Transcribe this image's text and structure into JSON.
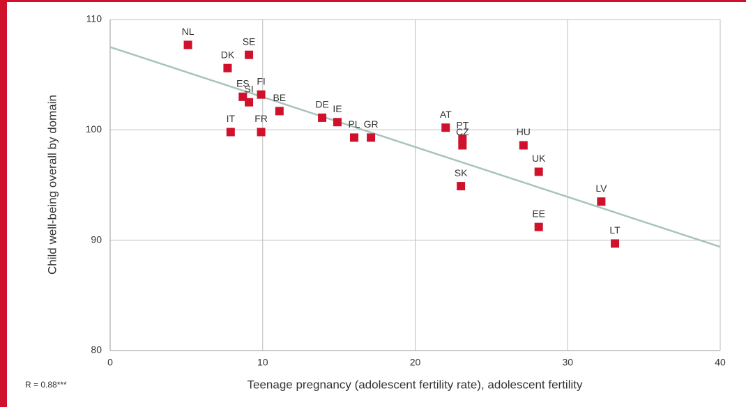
{
  "chart_data": {
    "type": "scatter",
    "x_label": "Teenage pregnancy (adolescent fertility rate), adolescent fertility",
    "y_label": "Child well-being overall by domain",
    "annotation": "R = 0.88***",
    "xlim": [
      0,
      40
    ],
    "xticks": [
      0,
      10,
      20,
      30,
      40
    ],
    "ylim": [
      80,
      110
    ],
    "yticks": [
      80,
      90,
      100,
      110
    ],
    "grid": true,
    "series": [
      {
        "color": "#d0112b",
        "labels": [
          "NL",
          "SE",
          "DK",
          "FI",
          "ES",
          "SI",
          "BE",
          "DE",
          "IE",
          "IT",
          "FR",
          "PL",
          "GR",
          "AT",
          "PT",
          "CZ",
          "HU",
          "SK",
          "UK",
          "LV",
          "EE",
          "LT"
        ],
        "x": [
          5.1,
          9.1,
          7.7,
          9.9,
          8.7,
          9.1,
          11.1,
          13.9,
          14.9,
          7.9,
          9.9,
          16.0,
          17.1,
          22.0,
          23.1,
          23.1,
          27.1,
          23.0,
          28.1,
          32.2,
          28.1,
          33.1
        ],
        "values": [
          107.7,
          106.8,
          105.6,
          103.2,
          103.0,
          102.5,
          101.7,
          101.1,
          100.7,
          99.8,
          99.8,
          99.3,
          99.3,
          100.2,
          99.2,
          98.6,
          98.6,
          94.9,
          96.2,
          93.5,
          91.2,
          89.7
        ]
      }
    ],
    "trend_line": {
      "color": "#a9c3bb",
      "x": [
        0,
        40
      ],
      "values": [
        107.5,
        89.4
      ]
    }
  }
}
